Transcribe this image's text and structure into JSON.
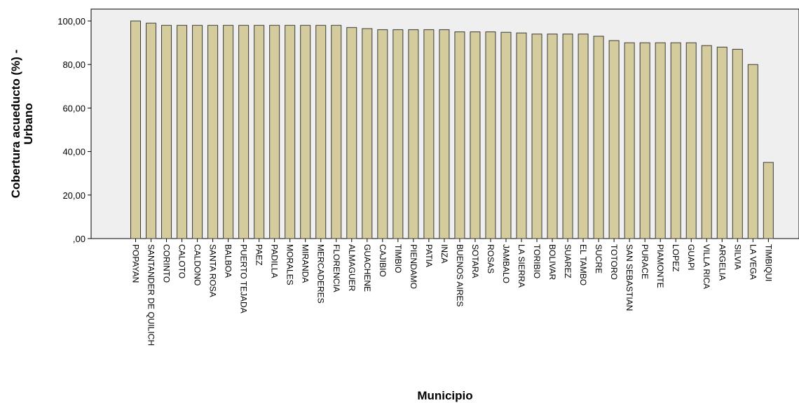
{
  "chart_data": {
    "type": "bar",
    "xlabel": "Municipio",
    "ylabel_line1": "Cobertura acueducto (%) -",
    "ylabel_line2": "Urbano",
    "ylim": [
      0,
      100
    ],
    "yticks": [
      {
        "value": 0,
        "label": ",00"
      },
      {
        "value": 20,
        "label": "20,00"
      },
      {
        "value": 40,
        "label": "40,00"
      },
      {
        "value": 60,
        "label": "60,00"
      },
      {
        "value": 80,
        "label": "80,00"
      },
      {
        "value": 100,
        "label": "100,00"
      }
    ],
    "grid": false,
    "colors": {
      "bar_fill": "#d5cc9e",
      "bar_stroke": "#3a3a3a",
      "plot_background": "#efefef",
      "axis": "#000000"
    },
    "categories": [
      "POPAYAN",
      "SANTANDER DE QUILICH",
      "CORINTO",
      "CALOTO",
      "CALDONO",
      "SANTA ROSA",
      "BALBOA",
      "PUERTO TEJADA",
      "PAEZ",
      "PADILLA",
      "MORALES",
      "MIRANDA",
      "MERCADERES",
      "FLORENCIA",
      "ALMAGUER",
      "GUACHENE",
      "CAJIBIO",
      "TIMBIO",
      "PIENDAMO",
      "PATIA",
      "INZA",
      "BUENOS AIRES",
      "SOTARA",
      "ROSAS",
      "JAMBALO",
      "LA SIERRA",
      "TORIBIO",
      "BOLIVAR",
      "SUAREZ",
      "EL TAMBO",
      "SUCRE",
      "TOTORO",
      "SAN SEBASTIAN",
      "PURACE",
      "PIAMONTE",
      "LOPEZ",
      "GUAPI",
      "VILLA RICA",
      "ARGELIA",
      "SILVIA",
      "LA VEGA",
      "TIMBIQUI"
    ],
    "values": [
      100,
      99,
      98,
      98,
      98,
      98,
      98,
      98,
      98,
      98,
      98,
      98,
      98,
      98,
      97,
      96.5,
      96,
      96,
      96,
      96,
      96,
      95,
      95,
      95,
      94.8,
      94.5,
      94,
      94,
      94,
      94,
      93,
      91,
      90,
      90,
      90,
      90,
      90,
      88.7,
      88,
      87,
      80,
      35
    ]
  }
}
